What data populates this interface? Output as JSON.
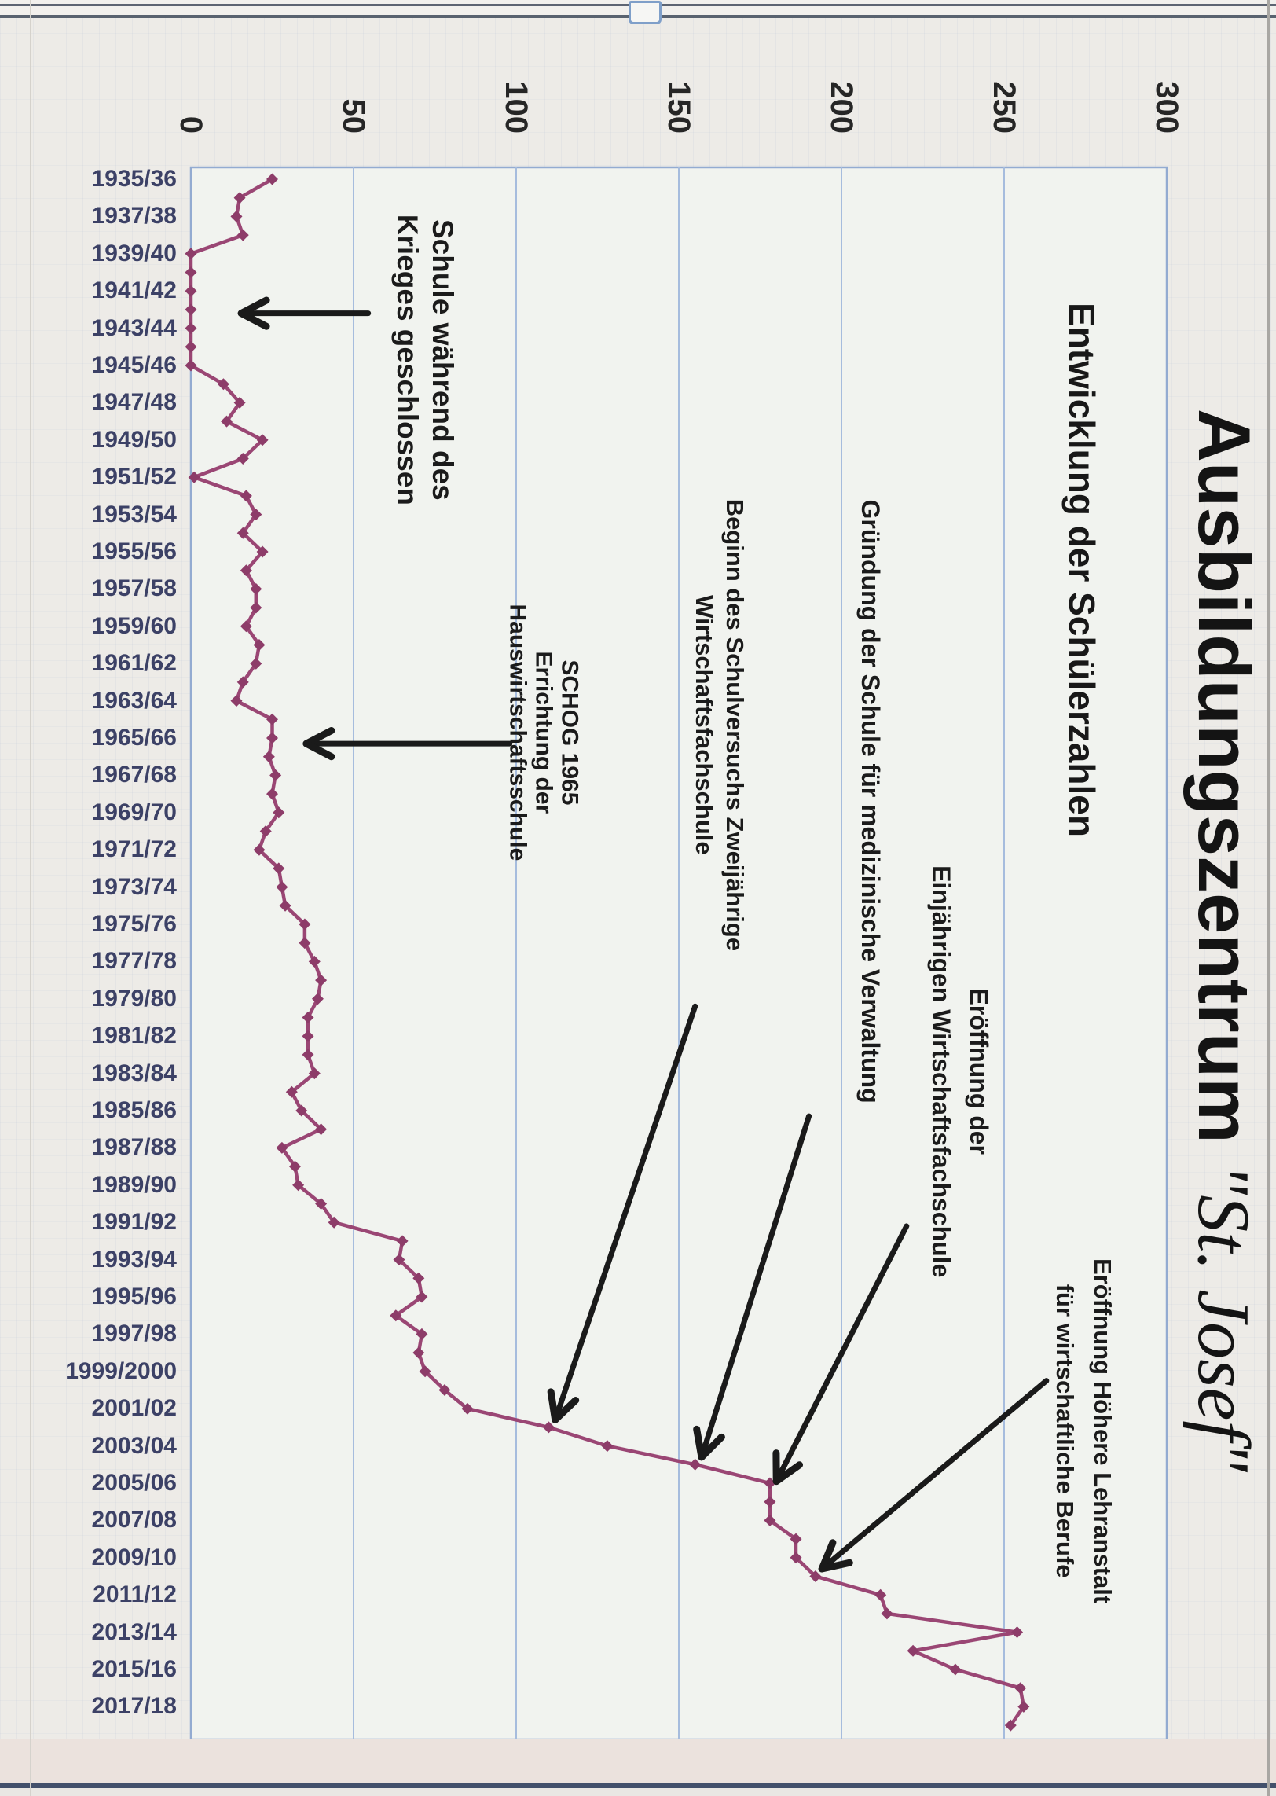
{
  "page": {
    "kind": "scanned chart page, rotated 90 degrees clockwise",
    "artifact_names": [
      "top-double-rule",
      "binder-tab",
      "bottom-rule",
      "page-edges"
    ]
  },
  "chart_data": {
    "type": "line",
    "title_part1": "Ausbildungszentrum",
    "title_part2": "\"St. Josef\"",
    "subtitle": "Entwicklung der Schülerzahlen",
    "xlabel": "",
    "ylabel": "",
    "ylim": [
      0,
      300
    ],
    "yticks": [
      0,
      50,
      100,
      150,
      200,
      250,
      300
    ],
    "grid": "horizontal, every 50",
    "legend": "none",
    "series_color": "#9a4674",
    "marker": "diamond",
    "label_every_nth_category": 2,
    "categories": [
      "1935/36",
      "1936/37",
      "1937/38",
      "1938/39",
      "1939/40",
      "1940/41",
      "1941/42",
      "1942/43",
      "1943/44",
      "1944/45",
      "1945/46",
      "1946/47",
      "1947/48",
      "1948/49",
      "1949/50",
      "1950/51",
      "1951/52",
      "1952/53",
      "1953/54",
      "1954/55",
      "1955/56",
      "1956/57",
      "1957/58",
      "1958/59",
      "1959/60",
      "1960/61",
      "1961/62",
      "1962/63",
      "1963/64",
      "1964/65",
      "1965/66",
      "1966/67",
      "1967/68",
      "1968/69",
      "1969/70",
      "1970/71",
      "1971/72",
      "1972/73",
      "1973/74",
      "1974/75",
      "1975/76",
      "1976/77",
      "1977/78",
      "1978/79",
      "1979/80",
      "1980/81",
      "1981/82",
      "1982/83",
      "1983/84",
      "1984/85",
      "1985/86",
      "1986/87",
      "1987/88",
      "1988/89",
      "1989/90",
      "1990/91",
      "1991/92",
      "1992/93",
      "1993/94",
      "1994/95",
      "1995/96",
      "1996/97",
      "1997/98",
      "1998/99",
      "1999/2000",
      "2000/01",
      "2001/02",
      "2002/03",
      "2003/04",
      "2004/05",
      "2005/06",
      "2006/07",
      "2007/08",
      "2008/09",
      "2009/10",
      "2010/11",
      "2011/12",
      "2012/13",
      "2013/14",
      "2014/15",
      "2015/16",
      "2016/17",
      "2017/18",
      "2018/19"
    ],
    "values": [
      25,
      15,
      14,
      16,
      0,
      0,
      0,
      0,
      0,
      0,
      0,
      10,
      15,
      11,
      22,
      16,
      1,
      17,
      20,
      16,
      22,
      17,
      20,
      20,
      17,
      21,
      20,
      16,
      14,
      25,
      25,
      24,
      26,
      25,
      27,
      23,
      21,
      27,
      28,
      29,
      35,
      35,
      38,
      40,
      39,
      36,
      36,
      36,
      38,
      31,
      34,
      40,
      28,
      32,
      33,
      40,
      44,
      65,
      64,
      70,
      71,
      63,
      71,
      70,
      72,
      78,
      85,
      110,
      128,
      155,
      178,
      178,
      178,
      186,
      186,
      192,
      212,
      214,
      254,
      222,
      235,
      255,
      256,
      252
    ],
    "annotations": [
      {
        "id": "war",
        "lines": [
          "Schule während des",
          "Krieges geschlossen"
        ],
        "year_index": 9.7,
        "value": 72,
        "font": 37,
        "lh": 45
      },
      {
        "id": "schog",
        "lines": [
          "SCHOG 1965",
          "Errichtung der",
          "Hauswirtschaftsschule"
        ],
        "year_index": 29.7,
        "value": 108.5,
        "font": 30,
        "lh": 33
      },
      {
        "id": "beginn",
        "lines": [
          "Beginn des Schulversuchs Zweijährige",
          "Wirtschaftsfachschule"
        ],
        "year_index": 29.3,
        "value": 162.5,
        "font": 31,
        "lh": 39
      },
      {
        "id": "gruendung",
        "lines": [
          "Gründung der Schule für medizinische Verwaltung"
        ],
        "year_index": 33.4,
        "value": 209,
        "font": 32,
        "lh": 40
      },
      {
        "id": "einjaehrig",
        "lines": [
          "Eröffnung der",
          "Einjährigen Wirtschaftsfachschule"
        ],
        "year_index": 47.9,
        "value": 236.5,
        "font": 32,
        "lh": 48
      },
      {
        "id": "hoehere",
        "lines": [
          "Eröffnung  Höhere Lehranstalt",
          "für wirtschaftliche Berufe"
        ],
        "year_index": 67.2,
        "value": 274.5,
        "font": 31,
        "lh": 48
      }
    ],
    "arrows": [
      {
        "id": "war-arrow",
        "from": {
          "n": 7.2,
          "v": 54.5
        },
        "to": {
          "n": 7.2,
          "v": 15.5
        }
      },
      {
        "id": "schog-arrow",
        "from": {
          "n": 30.3,
          "v": 98
        },
        "to": {
          "n": 30.3,
          "v": 35.5
        }
      },
      {
        "id": "beginn-arrow",
        "from": {
          "n": 44.4,
          "v": 155
        },
        "to": {
          "n": 66.6,
          "v": 112
        }
      },
      {
        "id": "gruendung-arrow",
        "from": {
          "n": 50.3,
          "v": 190
        },
        "to": {
          "n": 68.6,
          "v": 157
        }
      },
      {
        "id": "einjaehrig-arrow",
        "from": {
          "n": 56.2,
          "v": 220
        },
        "to": {
          "n": 69.9,
          "v": 180
        }
      },
      {
        "id": "hoehere-arrow",
        "from": {
          "n": 64.5,
          "v": 263
        },
        "to": {
          "n": 74.6,
          "v": 194
        }
      }
    ],
    "colors": {
      "plot_bg": "#f1f3ef",
      "plot_border": "#93abd1",
      "gridline": "#a6bcdd",
      "series": "#9a4674",
      "marker": "#8d3c69",
      "arrow": "#1a1a1a",
      "category_label": "#3c4166",
      "tick_label": "#262626"
    }
  }
}
